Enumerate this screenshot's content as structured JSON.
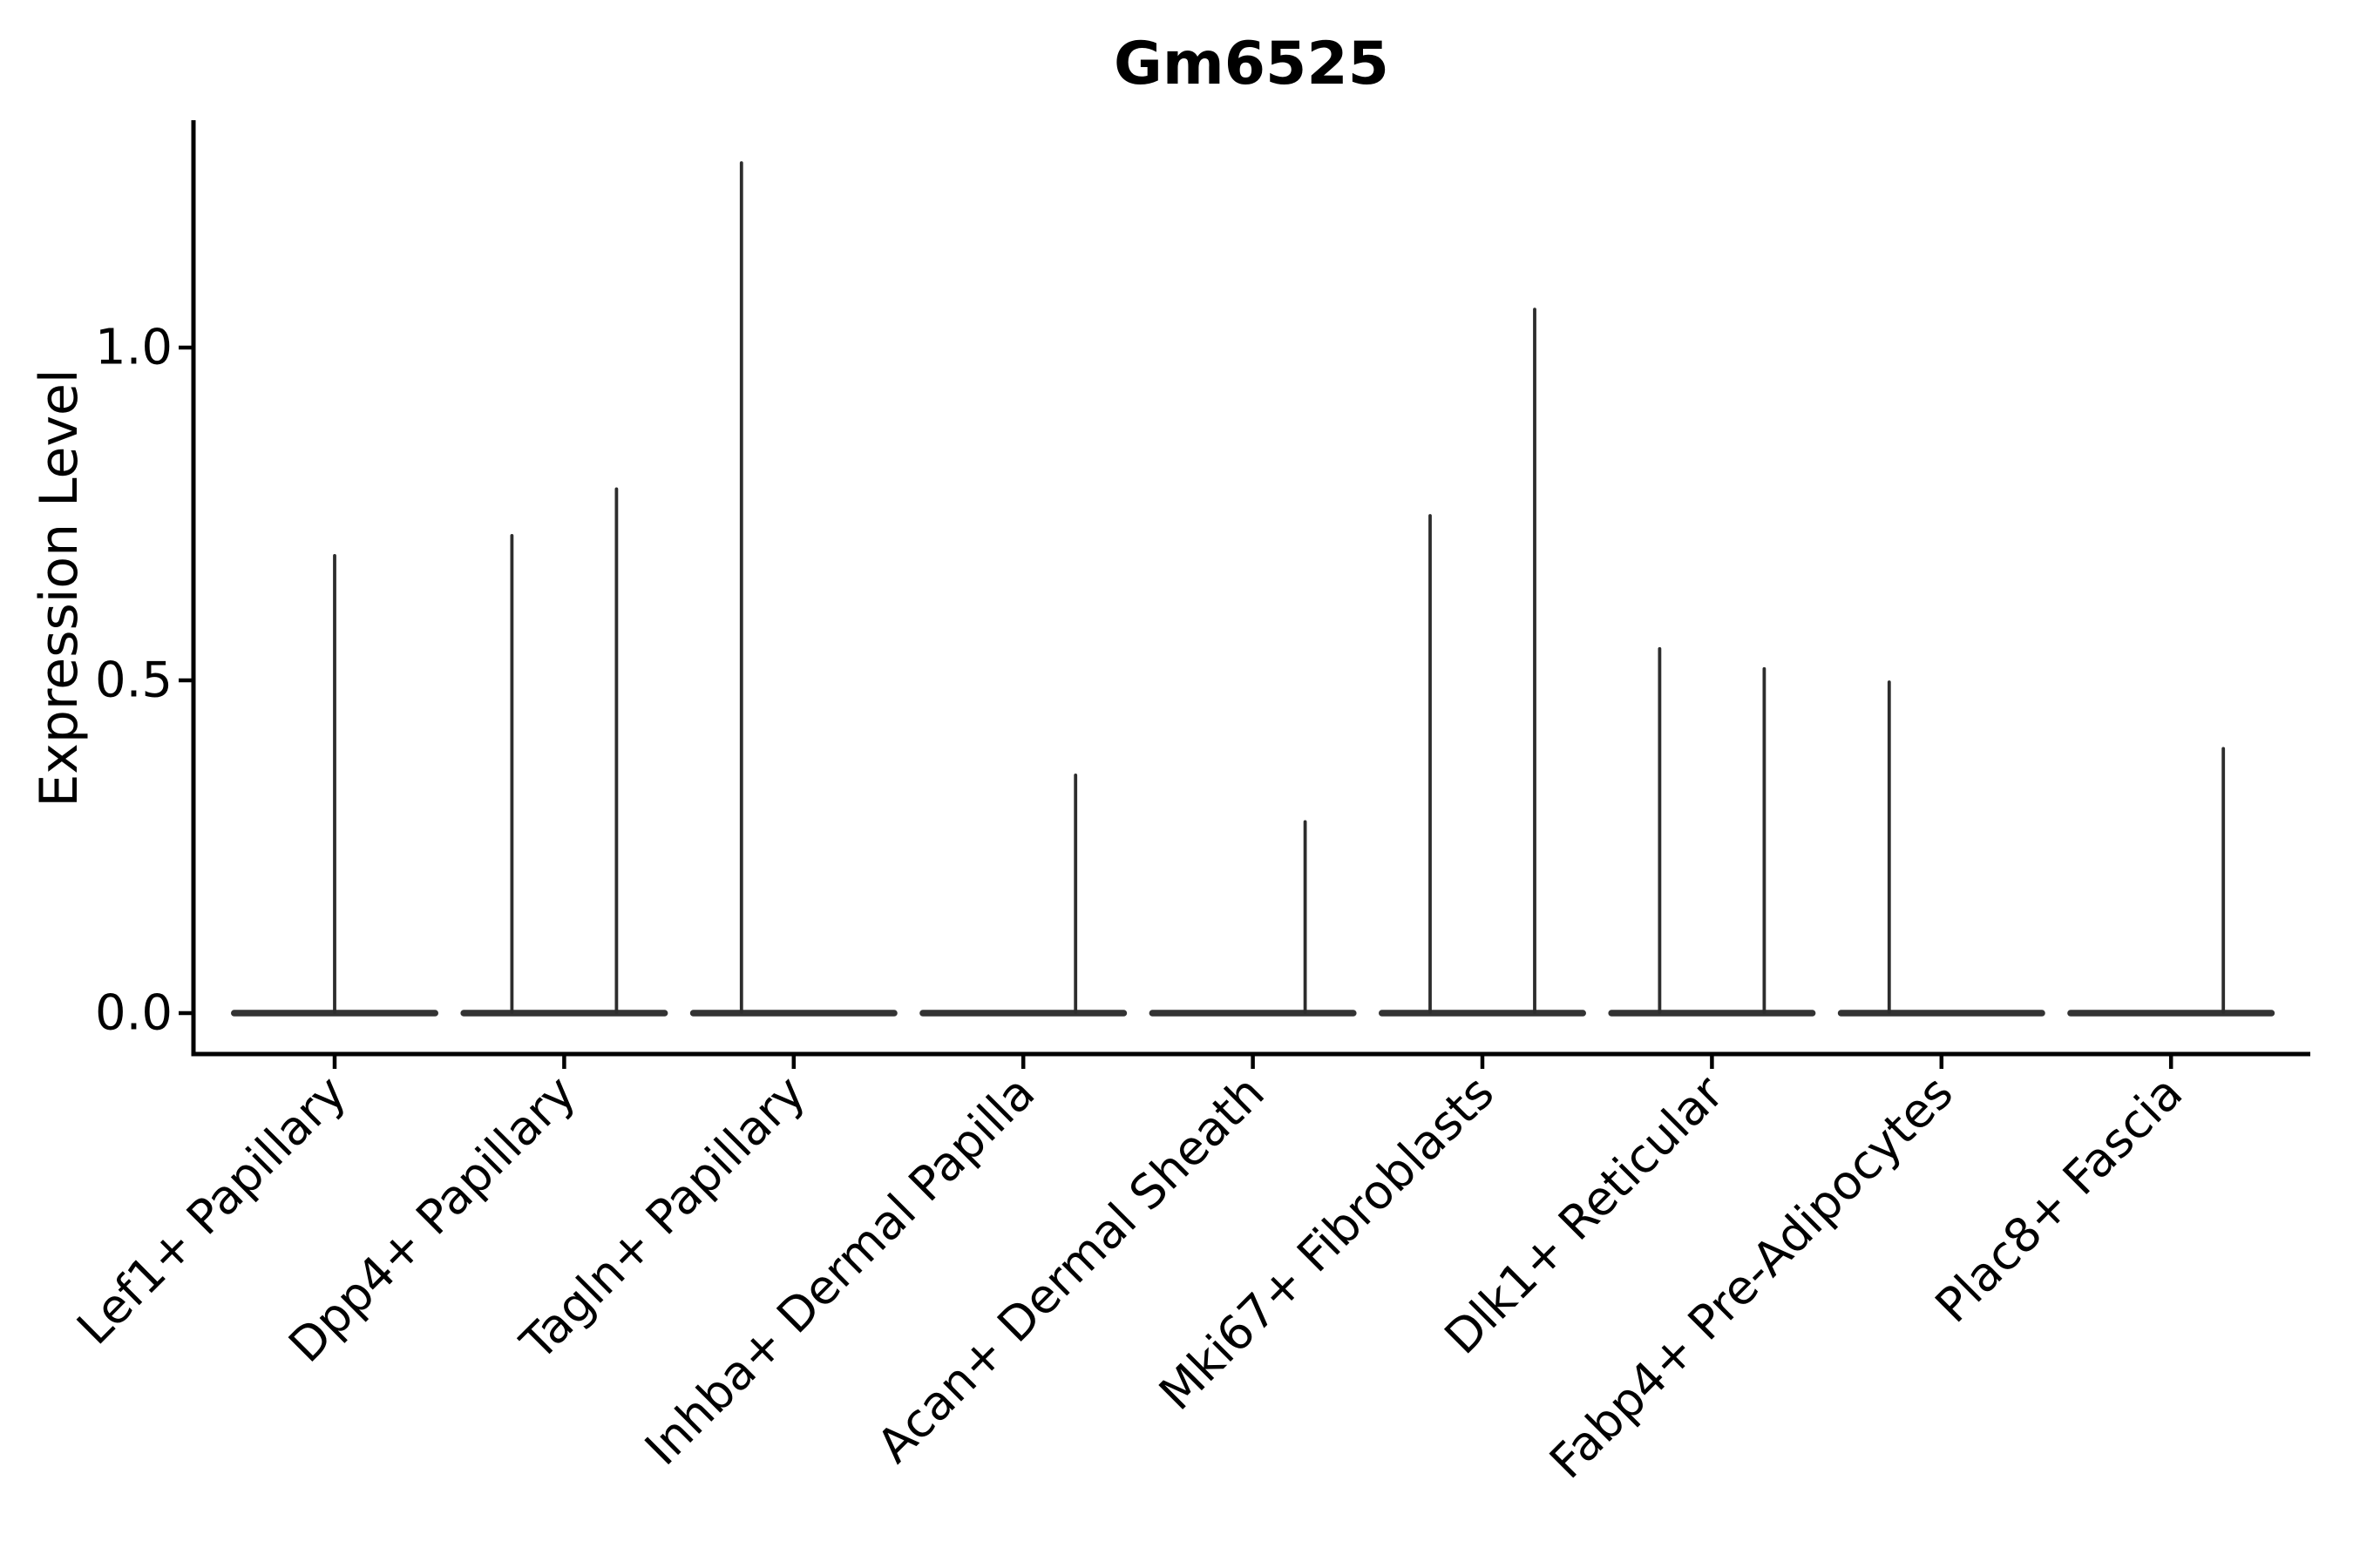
{
  "chart_data": {
    "type": "violin",
    "title": "Gm6525",
    "xlabel": "",
    "ylabel": "Expression Level",
    "yticks": [
      0.0,
      0.5,
      1.0
    ],
    "ytick_labels": [
      "0.0",
      "0.5",
      "1.0"
    ],
    "ylim": [
      -0.06,
      1.34
    ],
    "grid": false,
    "legend": null,
    "x_tick_rotation_degrees": 45,
    "baseline_value": 0.0,
    "description": "Single-cell expression violin plot; each cell population shows a flat violin body at 0 with thin vertical density spikes reaching the maximum expression values.",
    "violins": [
      {
        "category": "Lef1+ Papillary",
        "spikes": [
          {
            "position": "center",
            "max_expression": 0.69
          }
        ]
      },
      {
        "category": "Dpp4+ Papillary",
        "spikes": [
          {
            "position": "left",
            "max_expression": 0.72
          },
          {
            "position": "right",
            "max_expression": 0.79
          }
        ]
      },
      {
        "category": "Tagln+ Papillary",
        "spikes": [
          {
            "position": "left",
            "max_expression": 1.28
          }
        ]
      },
      {
        "category": "Inhba+ Dermal Papilla",
        "spikes": [
          {
            "position": "right",
            "max_expression": 0.36
          }
        ]
      },
      {
        "category": "Acan+ Dermal Sheath",
        "spikes": [
          {
            "position": "right",
            "max_expression": 0.29
          }
        ]
      },
      {
        "category": "Mki67+ Fibroblasts",
        "spikes": [
          {
            "position": "left",
            "max_expression": 0.75
          },
          {
            "position": "right",
            "max_expression": 1.06
          }
        ]
      },
      {
        "category": "Dlk1+ Reticular",
        "spikes": [
          {
            "position": "left",
            "max_expression": 0.55
          },
          {
            "position": "right",
            "max_expression": 0.52
          }
        ]
      },
      {
        "category": "Fabp4+ Pre-Adipocytes",
        "spikes": [
          {
            "position": "left",
            "max_expression": 0.5
          }
        ]
      },
      {
        "category": "Plac8+ Fascia",
        "spikes": [
          {
            "position": "right",
            "max_expression": 0.4
          }
        ]
      }
    ],
    "colors": {
      "background": "#ffffff",
      "spine": "#000000",
      "tick": "#000000",
      "text": "#000000",
      "violin_body": "#333333",
      "violin_spike": "#2d2d2d"
    }
  }
}
